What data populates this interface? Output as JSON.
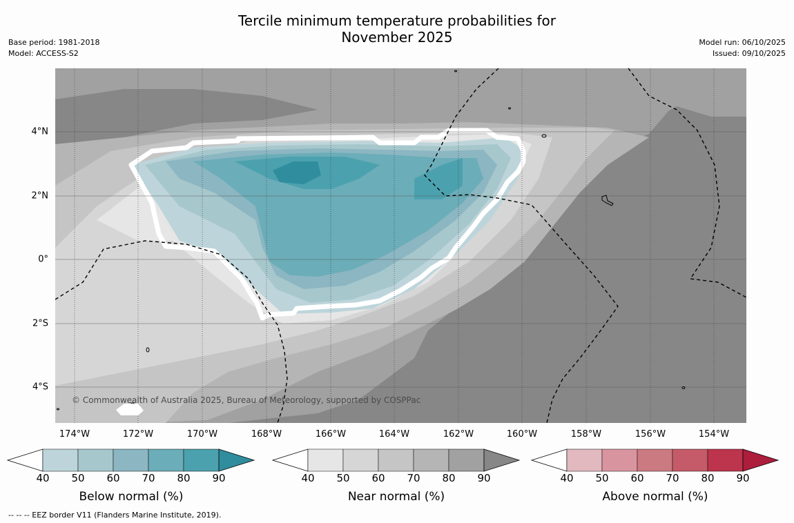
{
  "title": {
    "line1": "Tercile minimum temperature probabilities for",
    "line2": "November 2025"
  },
  "meta": {
    "base_period": "Base period: 1981-2018",
    "model": "Model: ACCESS-S2",
    "model_run": "Model run: 06/10/2025",
    "issued": "Issued: 09/10/2025"
  },
  "map": {
    "lat_labels": [
      "4°N",
      "2°N",
      "0°",
      "2°S",
      "4°S"
    ],
    "lon_labels": [
      "174°W",
      "172°W",
      "170°W",
      "168°W",
      "166°W",
      "164°W",
      "162°W",
      "160°W",
      "158°W",
      "156°W",
      "154°W"
    ],
    "copyright": "© Commonwealth of Australia 2025, Bureau of Meteorology, supported by COSPPac"
  },
  "colorbars": [
    {
      "name": "below",
      "label": "Below normal (%)",
      "ticks": [
        "40",
        "50",
        "60",
        "70",
        "80",
        "90"
      ],
      "colors": [
        "#bdd5da",
        "#a6c7cc",
        "#8bb6c2",
        "#6badb8",
        "#4ca1ae",
        "#2f8d9d"
      ]
    },
    {
      "name": "near",
      "label": "Near normal (%)",
      "ticks": [
        "40",
        "50",
        "60",
        "70",
        "80",
        "90"
      ],
      "colors": [
        "#e6e6e6",
        "#d6d6d6",
        "#c5c5c5",
        "#b5b5b5",
        "#a1a1a1",
        "#878787"
      ]
    },
    {
      "name": "above",
      "label": "Above normal (%)",
      "ticks": [
        "40",
        "50",
        "60",
        "70",
        "80",
        "90"
      ],
      "colors": [
        "#e1b9bf",
        "#d9959f",
        "#cc7a82",
        "#c55b68",
        "#bd344d",
        "#ad1d3c"
      ]
    }
  ],
  "eez_note": "-- -- -- EEZ border V11 (Flanders Marine Institute, 2019)."
}
